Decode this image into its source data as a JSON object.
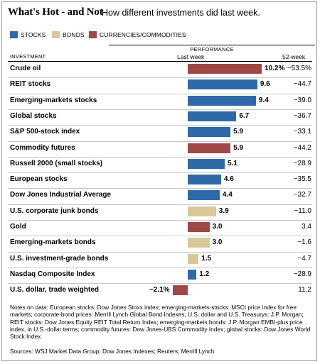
{
  "title": "What's Hot - and Not",
  "subtitle": "How different investments did last week.",
  "colors": {
    "stocks": "#2e6aa8",
    "bonds": "#d8c898",
    "currencies": "#a04848"
  },
  "chart_data": {
    "type": "bar",
    "orientation": "horizontal",
    "legend": [
      {
        "key": "stocks",
        "label": "STOCKS"
      },
      {
        "key": "bonds",
        "label": "BONDS"
      },
      {
        "key": "currencies",
        "label": "CURRENCIES/COMMODITIES"
      }
    ],
    "header": {
      "group": "PERFORMANCE",
      "investment": "INVESTMENT",
      "last_week": "Last week",
      "week52": "52-week"
    },
    "xlim": [
      -2.1,
      10.2
    ],
    "rows": [
      {
        "name": "Crude oil",
        "value": 10.2,
        "label": "10.2%",
        "week52": "−53.5%",
        "type": "currencies"
      },
      {
        "name": "REIT stocks",
        "value": 9.6,
        "label": "9.6",
        "week52": "−44.7",
        "type": "stocks"
      },
      {
        "name": "Emerging-markets stocks",
        "value": 9.4,
        "label": "9.4",
        "week52": "−39.0",
        "type": "stocks"
      },
      {
        "name": "Global stocks",
        "value": 6.7,
        "label": "6.7",
        "week52": "−36.7",
        "type": "stocks"
      },
      {
        "name": "S&P 500-stock index",
        "value": 5.9,
        "label": "5.9",
        "week52": "−33.1",
        "type": "stocks"
      },
      {
        "name": "Commodity futures",
        "value": 5.9,
        "label": "5.9",
        "week52": "−44.2",
        "type": "currencies"
      },
      {
        "name": "Russell 2000 (small stocks)",
        "value": 5.1,
        "label": "5.1",
        "week52": "−28.9",
        "type": "stocks"
      },
      {
        "name": "European stocks",
        "value": 4.6,
        "label": "4.6",
        "week52": "−35.5",
        "type": "stocks"
      },
      {
        "name": "Dow Jones Industrial Average",
        "value": 4.4,
        "label": "4.4",
        "week52": "−32.7",
        "type": "stocks"
      },
      {
        "name": "U.S. corporate junk bonds",
        "value": 3.9,
        "label": "3.9",
        "week52": "−11.0",
        "type": "bonds"
      },
      {
        "name": "Gold",
        "value": 3.0,
        "label": "3.0",
        "week52": "3.4",
        "type": "currencies"
      },
      {
        "name": "Emerging-markets bonds",
        "value": 3.0,
        "label": "3.0",
        "week52": "−1.6",
        "type": "bonds"
      },
      {
        "name": "U.S. investment-grade bonds",
        "value": 1.5,
        "label": "1.5",
        "week52": "−4.7",
        "type": "bonds"
      },
      {
        "name": "Nasdaq Composite Index",
        "value": 1.2,
        "label": "1.2",
        "week52": "−28.9",
        "type": "stocks"
      },
      {
        "name": "U.S. dollar, trade weighted",
        "value": -2.1,
        "label": "−2.1%",
        "week52": "11.2",
        "type": "currencies"
      }
    ]
  },
  "notes": "Notes on data: European stocks: Dow Jones Stoxx index; emerging-markets-stocks: MSCI price index for free markets; corporate-bond prices: Merrill Lynch Global Bond Indexes; U.S. dollar and U.S. Treasurys: J.P. Morgan; REIT stocks: Dow Jones Equity REIT Total Return Index; emerging-markets bonds: J.P. Morgan EMBI-plus price index, in U.S.-dollar terms; commodity futures: Dow Jones-UBS Commodity Index; global stocks: Dow Jones World Stock Index",
  "sources": "Sources: WSJ Market Data Group; Dow Jones Indexes; Reuters; Merrill Lynch"
}
